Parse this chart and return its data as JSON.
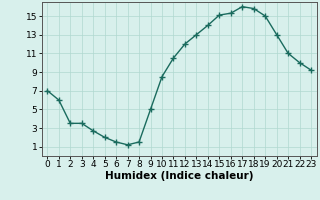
{
  "x": [
    0,
    1,
    2,
    3,
    4,
    5,
    6,
    7,
    8,
    9,
    10,
    11,
    12,
    13,
    14,
    15,
    16,
    17,
    18,
    19,
    20,
    21,
    22,
    23
  ],
  "y": [
    7,
    6,
    3.5,
    3.5,
    2.7,
    2,
    1.5,
    1.2,
    1.5,
    5,
    8.5,
    10.5,
    12,
    13,
    14,
    15.1,
    15.3,
    16,
    15.8,
    15,
    13,
    11,
    10,
    9.2
  ],
  "line_color": "#1a6b5e",
  "marker": "+",
  "marker_size": 4,
  "marker_linewidth": 1.0,
  "line_width": 1.0,
  "bg_color": "#d8f0ec",
  "grid_color": "#b0d8d0",
  "xlabel": "Humidex (Indice chaleur)",
  "xlim": [
    -0.5,
    23.5
  ],
  "ylim": [
    0,
    16.5
  ],
  "xticks": [
    0,
    1,
    2,
    3,
    4,
    5,
    6,
    7,
    8,
    9,
    10,
    11,
    12,
    13,
    14,
    15,
    16,
    17,
    18,
    19,
    20,
    21,
    22,
    23
  ],
  "yticks": [
    1,
    3,
    5,
    7,
    9,
    11,
    13,
    15
  ],
  "tick_fontsize": 6.5,
  "xlabel_fontsize": 7.5,
  "spine_color": "#555555"
}
